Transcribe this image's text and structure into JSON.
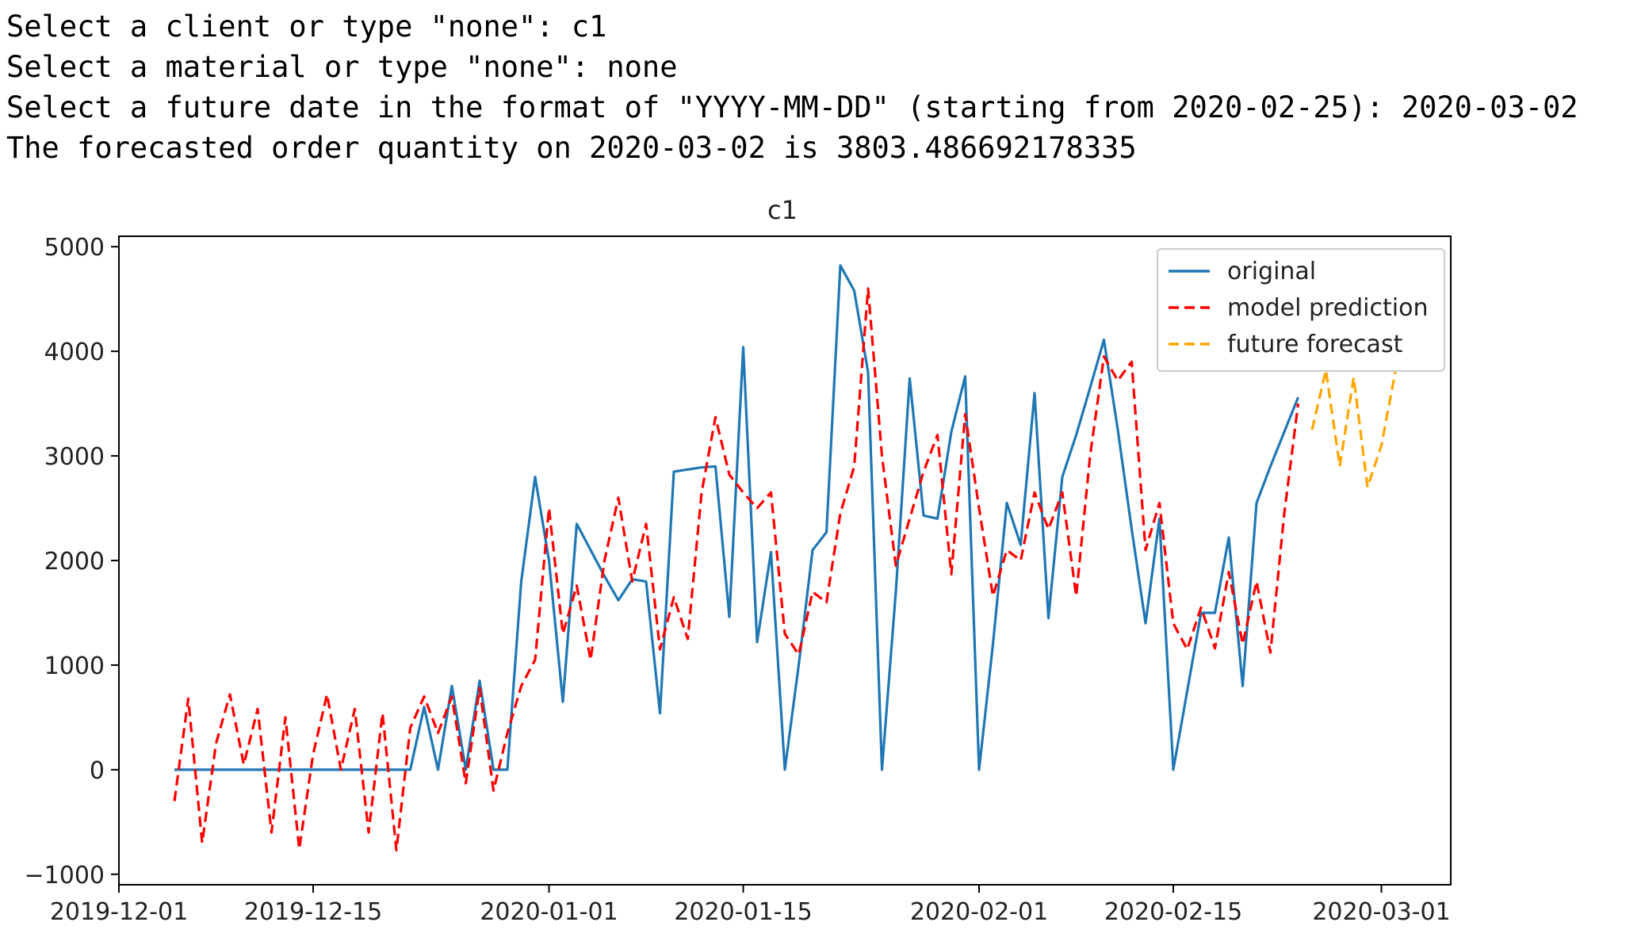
{
  "console": {
    "lines": [
      "Select a client or type \"none\": c1",
      "Select a material or type \"none\": none",
      "Select a future date in the format of \"YYYY-MM-DD\" (starting from 2020-02-25): 2020-03-02",
      "The forecasted order quantity on 2020-03-02 is 3803.486692178335"
    ]
  },
  "chart_data": {
    "type": "line",
    "title": "c1",
    "xlabel": "",
    "ylabel": "",
    "xlim": [
      "2019-12-01",
      "2020-03-06"
    ],
    "ylim": [
      -1100,
      5100
    ],
    "xticks": [
      "2019-12-01",
      "2019-12-15",
      "2020-01-01",
      "2020-01-15",
      "2020-02-01",
      "2020-02-15",
      "2020-03-01"
    ],
    "yticks": [
      -1000,
      0,
      1000,
      2000,
      3000,
      4000,
      5000
    ],
    "grid": false,
    "legend_position": "top-right",
    "series": [
      {
        "name": "original",
        "color": "#1f77b4",
        "style": "solid",
        "x": [
          "2019-12-05",
          "2019-12-06",
          "2019-12-07",
          "2019-12-08",
          "2019-12-09",
          "2019-12-10",
          "2019-12-11",
          "2019-12-12",
          "2019-12-13",
          "2019-12-14",
          "2019-12-15",
          "2019-12-16",
          "2019-12-17",
          "2019-12-18",
          "2019-12-19",
          "2019-12-20",
          "2019-12-21",
          "2019-12-22",
          "2019-12-23",
          "2019-12-24",
          "2019-12-25",
          "2019-12-26",
          "2019-12-27",
          "2019-12-28",
          "2019-12-29",
          "2019-12-30",
          "2019-12-31",
          "2020-01-01",
          "2020-01-02",
          "2020-01-03",
          "2020-01-04",
          "2020-01-05",
          "2020-01-06",
          "2020-01-07",
          "2020-01-08",
          "2020-01-09",
          "2020-01-10",
          "2020-01-11",
          "2020-01-12",
          "2020-01-13",
          "2020-01-14",
          "2020-01-15",
          "2020-01-16",
          "2020-01-17",
          "2020-01-18",
          "2020-01-19",
          "2020-01-20",
          "2020-01-21",
          "2020-01-22",
          "2020-01-23",
          "2020-01-24",
          "2020-01-25",
          "2020-01-26",
          "2020-01-27",
          "2020-01-28",
          "2020-01-29",
          "2020-01-30",
          "2020-01-31",
          "2020-02-01",
          "2020-02-02",
          "2020-02-03",
          "2020-02-04",
          "2020-02-05",
          "2020-02-06",
          "2020-02-07",
          "2020-02-08",
          "2020-02-09",
          "2020-02-10",
          "2020-02-11",
          "2020-02-12",
          "2020-02-13",
          "2020-02-14",
          "2020-02-15",
          "2020-02-16",
          "2020-02-17",
          "2020-02-18",
          "2020-02-19",
          "2020-02-20",
          "2020-02-21",
          "2020-02-22",
          "2020-02-23",
          "2020-02-24"
        ],
        "y": [
          0,
          0,
          0,
          0,
          0,
          0,
          0,
          0,
          0,
          0,
          0,
          0,
          0,
          0,
          0,
          0,
          0,
          0,
          600,
          0,
          800,
          0,
          850,
          0,
          0,
          1800,
          2800,
          2000,
          650,
          2350,
          2100,
          1850,
          1620,
          1820,
          1800,
          540,
          2850,
          2870,
          2890,
          2900,
          1460,
          4040,
          1220,
          2080,
          0,
          1000,
          2100,
          2270,
          4820,
          4580,
          3800,
          0,
          1700,
          3740,
          2430,
          2400,
          3230,
          3760,
          0,
          1200,
          2550,
          2150,
          3600,
          1450,
          2800,
          3200,
          3650,
          4110,
          3250,
          2300,
          1400,
          2400,
          0,
          750,
          1500,
          1500,
          2220,
          800,
          2550,
          2900,
          3230,
          3560
        ]
      },
      {
        "name": "model prediction",
        "color": "#ff0000",
        "style": "dashed",
        "x": [
          "2019-12-05",
          "2019-12-06",
          "2019-12-07",
          "2019-12-08",
          "2019-12-09",
          "2019-12-10",
          "2019-12-11",
          "2019-12-12",
          "2019-12-13",
          "2019-12-14",
          "2019-12-15",
          "2019-12-16",
          "2019-12-17",
          "2019-12-18",
          "2019-12-19",
          "2019-12-20",
          "2019-12-21",
          "2019-12-22",
          "2019-12-23",
          "2019-12-24",
          "2019-12-25",
          "2019-12-26",
          "2019-12-27",
          "2019-12-28",
          "2019-12-29",
          "2019-12-30",
          "2019-12-31",
          "2020-01-01",
          "2020-01-02",
          "2020-01-03",
          "2020-01-04",
          "2020-01-05",
          "2020-01-06",
          "2020-01-07",
          "2020-01-08",
          "2020-01-09",
          "2020-01-10",
          "2020-01-11",
          "2020-01-12",
          "2020-01-13",
          "2020-01-14",
          "2020-01-15",
          "2020-01-16",
          "2020-01-17",
          "2020-01-18",
          "2020-01-19",
          "2020-01-20",
          "2020-01-21",
          "2020-01-22",
          "2020-01-23",
          "2020-01-24",
          "2020-01-25",
          "2020-01-26",
          "2020-01-27",
          "2020-01-28",
          "2020-01-29",
          "2020-01-30",
          "2020-01-31",
          "2020-02-01",
          "2020-02-02",
          "2020-02-03",
          "2020-02-04",
          "2020-02-05",
          "2020-02-06",
          "2020-02-07",
          "2020-02-08",
          "2020-02-09",
          "2020-02-10",
          "2020-02-11",
          "2020-02-12",
          "2020-02-13",
          "2020-02-14",
          "2020-02-15",
          "2020-02-16",
          "2020-02-17",
          "2020-02-18",
          "2020-02-19",
          "2020-02-20",
          "2020-02-21",
          "2020-02-22",
          "2020-02-23",
          "2020-02-24"
        ],
        "y": [
          -300,
          680,
          -700,
          250,
          720,
          50,
          580,
          -600,
          500,
          -760,
          150,
          720,
          0,
          580,
          -600,
          540,
          -770,
          400,
          700,
          350,
          700,
          -130,
          780,
          -200,
          350,
          800,
          1050,
          2500,
          1300,
          1760,
          1050,
          2000,
          2600,
          1800,
          2350,
          1150,
          1650,
          1250,
          2650,
          3370,
          2820,
          2650,
          2500,
          2650,
          1300,
          1100,
          1700,
          1600,
          2450,
          2900,
          4600,
          3000,
          1950,
          2400,
          2850,
          3200,
          1870,
          3400,
          2500,
          1660,
          2100,
          2000,
          2650,
          2300,
          2650,
          1660,
          3000,
          3950,
          3720,
          3900,
          2100,
          2550,
          1400,
          1150,
          1550,
          1160,
          1890,
          1200,
          1800,
          1120,
          2450,
          3500
        ]
      },
      {
        "name": "future forecast",
        "color": "#ffa500",
        "style": "dashed",
        "x": [
          "2020-02-25",
          "2020-02-26",
          "2020-02-27",
          "2020-02-28",
          "2020-02-29",
          "2020-03-01",
          "2020-03-02"
        ],
        "y": [
          3250,
          3820,
          2900,
          3750,
          2700,
          3100,
          3803.486692178335
        ]
      }
    ]
  }
}
